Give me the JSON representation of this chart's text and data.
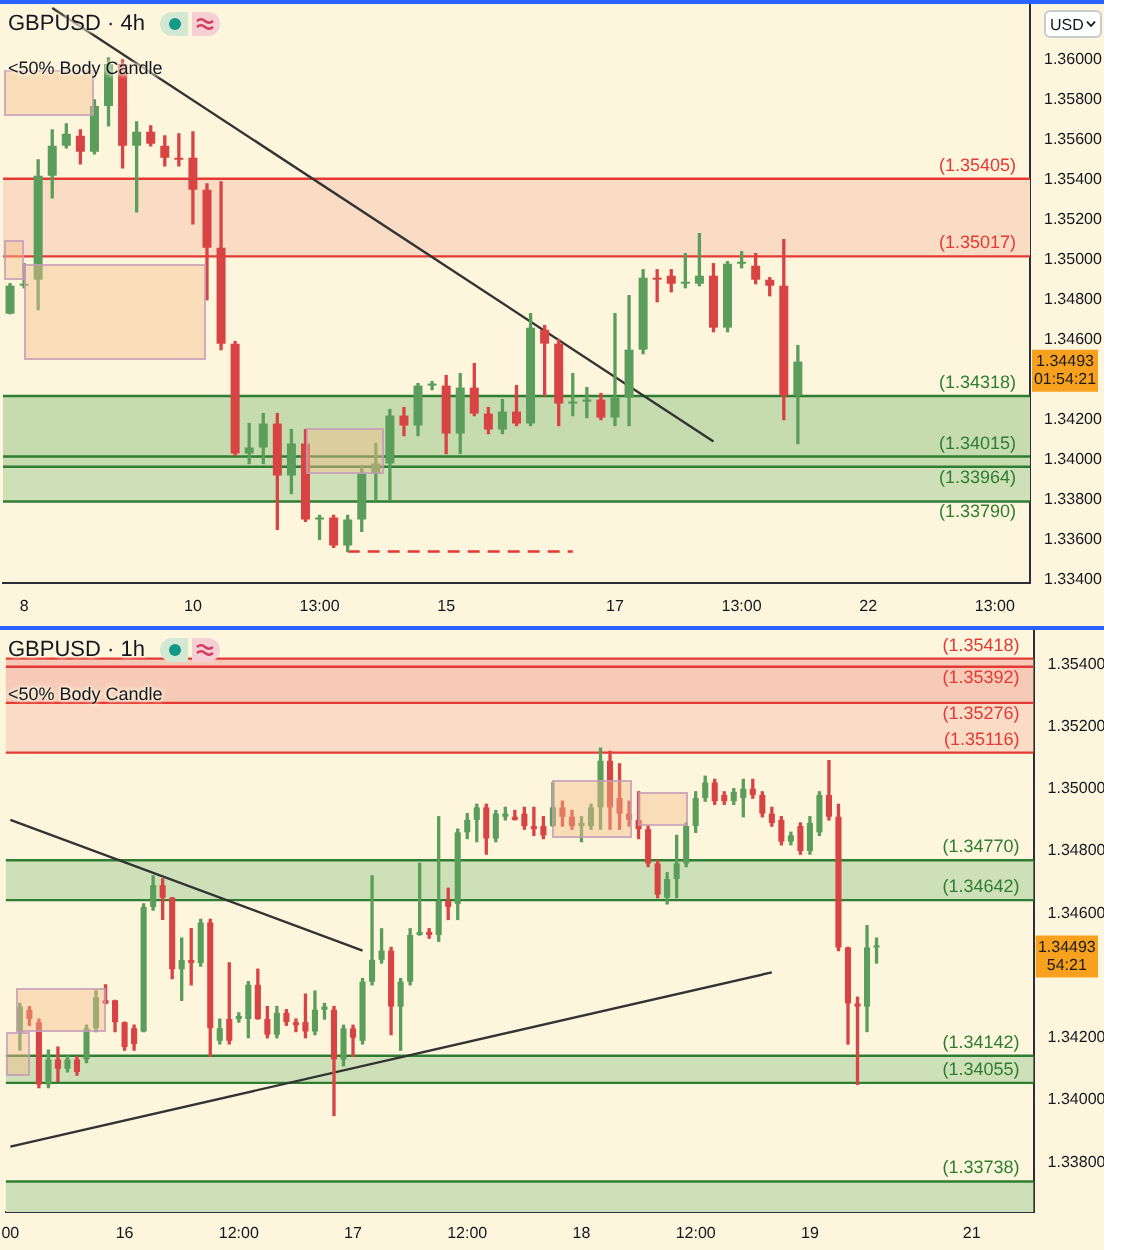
{
  "chart_data": [
    {
      "type": "candlestick",
      "title": "GBPUSD · 4h",
      "subtitle": "<50% Body Candle",
      "categories": [
        null,
        "8",
        null,
        null,
        null,
        null,
        null,
        null,
        null,
        null,
        null,
        null,
        null,
        "10",
        null,
        null,
        null,
        null,
        null,
        null,
        null,
        null,
        "13:00",
        null,
        null,
        null,
        null,
        null,
        null,
        null,
        null,
        "15",
        null,
        null,
        null,
        null,
        null,
        null,
        null,
        null,
        null,
        null,
        null,
        "17",
        null,
        null,
        null,
        null,
        null,
        null,
        null,
        null,
        "13:00",
        null,
        null,
        null,
        null,
        null,
        null,
        null,
        null,
        "22",
        null,
        null,
        null,
        null,
        null,
        null,
        null,
        null,
        "13:00",
        null,
        null
      ],
      "ohlc": [
        [
          1.3473,
          1.3488,
          1.3473,
          1.3487
        ],
        [
          1.3487,
          1.3498,
          1.3486,
          1.3488
        ],
        [
          1.349,
          1.355,
          1.3475,
          1.3542
        ],
        [
          1.3542,
          1.3565,
          1.3531,
          1.3557
        ],
        [
          1.3557,
          1.3568,
          1.3556,
          1.3563
        ],
        [
          1.3562,
          1.3565,
          1.3548,
          1.3554
        ],
        [
          1.3554,
          1.358,
          1.3553,
          1.3577
        ],
        [
          1.3577,
          1.3601,
          1.3567,
          1.3598
        ],
        [
          1.3598,
          1.36,
          1.3546,
          1.3557
        ],
        [
          1.3557,
          1.3569,
          1.3524,
          1.3564
        ],
        [
          1.3564,
          1.3567,
          1.3557,
          1.3558
        ],
        [
          1.3557,
          1.3562,
          1.3547,
          1.3551
        ],
        [
          1.3551,
          1.3563,
          1.3547,
          1.355
        ],
        [
          1.3551,
          1.3564,
          1.3518,
          1.3535
        ],
        [
          1.3535,
          1.3538,
          1.348,
          1.3506
        ],
        [
          1.3506,
          1.3539,
          1.3455,
          1.3458
        ],
        [
          1.3458,
          1.3459,
          1.3402,
          1.3403
        ],
        [
          1.3403,
          1.3418,
          1.3398,
          1.3406
        ],
        [
          1.3406,
          1.3423,
          1.3398,
          1.3418
        ],
        [
          1.3418,
          1.3423,
          1.3365,
          1.3392
        ],
        [
          1.3392,
          1.3415,
          1.3383,
          1.3408
        ],
        [
          1.3408,
          1.3415,
          1.3369,
          1.337
        ],
        [
          1.337,
          1.3372,
          1.336,
          1.3371
        ],
        [
          1.3371,
          1.3372,
          1.3356,
          1.3357
        ],
        [
          1.3357,
          1.3372,
          1.3354,
          1.337
        ],
        [
          1.337,
          1.3397,
          1.3364,
          1.3393
        ],
        [
          1.3393,
          1.3408,
          1.338,
          1.3398
        ],
        [
          1.3398,
          1.3425,
          1.338,
          1.3422
        ],
        [
          1.3422,
          1.3426,
          1.3412,
          1.3417
        ],
        [
          1.3417,
          1.3438,
          1.3412,
          1.3437
        ],
        [
          1.3437,
          1.3439,
          1.3435,
          1.3438
        ],
        [
          1.3437,
          1.3442,
          1.3403,
          1.3413
        ],
        [
          1.3413,
          1.3443,
          1.3403,
          1.3436
        ],
        [
          1.3436,
          1.3448,
          1.3422,
          1.3423
        ],
        [
          1.3423,
          1.3426,
          1.3413,
          1.3415
        ],
        [
          1.3415,
          1.343,
          1.3413,
          1.3424
        ],
        [
          1.3424,
          1.3437,
          1.3417,
          1.3418
        ],
        [
          1.3418,
          1.3473,
          1.3417,
          1.3466
        ],
        [
          1.3465,
          1.3467,
          1.3432,
          1.3458
        ],
        [
          1.3458,
          1.346,
          1.3417,
          1.3428
        ],
        [
          1.3428,
          1.3443,
          1.3422,
          1.3429
        ],
        [
          1.3429,
          1.3436,
          1.3421,
          1.343
        ],
        [
          1.343,
          1.3433,
          1.342,
          1.3421
        ],
        [
          1.3421,
          1.3473,
          1.3417,
          1.3431
        ],
        [
          1.3431,
          1.3482,
          1.3417,
          1.3455
        ],
        [
          1.3455,
          1.3495,
          1.3453,
          1.3491
        ],
        [
          1.3491,
          1.3495,
          1.3479,
          1.349
        ],
        [
          1.3492,
          1.3495,
          1.3484,
          1.3488
        ],
        [
          1.3488,
          1.3503,
          1.3486,
          1.3489
        ],
        [
          1.3488,
          1.3513,
          1.3487,
          1.3492
        ],
        [
          1.3492,
          1.3498,
          1.3464,
          1.3466
        ],
        [
          1.3466,
          1.3499,
          1.3464,
          1.3498
        ],
        [
          1.3498,
          1.3504,
          1.3496,
          1.3499
        ],
        [
          1.3497,
          1.3503,
          1.3488,
          1.349
        ],
        [
          1.349,
          1.3491,
          1.3482,
          1.3487
        ],
        [
          1.3487,
          1.351,
          1.342,
          1.3432
        ],
        [
          1.3432,
          1.3457,
          1.3408,
          1.3449
        ],
        null,
        null,
        null,
        null,
        null,
        null,
        null,
        null,
        null,
        null,
        null,
        null,
        null,
        null,
        null,
        null
      ],
      "colors": [
        "#5b9d5b",
        "#5b9d5b",
        "#5b9d5b",
        "#5b9d5b",
        "#5b9d5b",
        "#d84343",
        "#5b9d5b",
        "#5b9d5b",
        "#d84343",
        "#5b9d5b",
        "#d84343",
        "#d84343",
        "#d84343",
        "#d84343",
        "#d84343",
        "#d84343",
        "#d84343",
        "#5b9d5b",
        "#5b9d5b",
        "#d84343",
        "#5b9d5b",
        "#d84343",
        "#5b9d5b",
        "#d84343",
        "#5b9d5b",
        "#5b9d5b",
        "#5b9d5b",
        "#5b9d5b",
        "#d84343",
        "#5b9d5b",
        "#5b9d5b",
        "#d84343",
        "#5b9d5b",
        "#d84343",
        "#d84343",
        "#5b9d5b",
        "#d84343",
        "#5b9d5b",
        "#d84343",
        "#d84343",
        "#5b9d5b",
        "#5b9d5b",
        "#d84343",
        "#5b9d5b",
        "#5b9d5b",
        "#5b9d5b",
        "#d84343",
        "#d84343",
        "#5b9d5b",
        "#5b9d5b",
        "#d84343",
        "#5b9d5b",
        "#5b9d5b",
        "#d84343",
        "#d84343",
        "#d84343",
        "#5b9d5b",
        null,
        null,
        null,
        null,
        null,
        null,
        null,
        null,
        null,
        null,
        null,
        null,
        null,
        null,
        null,
        null
      ],
      "series": [
        {
          "type": "line",
          "color": "#333333",
          "values": [
            null,
            null,
            null,
            1.3626,
            null,
            null,
            null,
            null,
            null,
            null,
            null,
            null,
            null,
            null,
            null,
            null,
            null,
            null,
            null,
            null,
            null,
            null,
            null,
            null,
            null,
            null,
            null,
            null,
            null,
            null,
            null,
            null,
            null,
            null,
            null,
            null,
            null,
            null,
            null,
            null,
            null,
            null,
            null,
            null,
            null,
            null,
            null,
            null,
            null,
            null,
            1.3409,
            null,
            null,
            null,
            null,
            null,
            null,
            null,
            null,
            null,
            null,
            null,
            null,
            null,
            null,
            null,
            null,
            null,
            null,
            null,
            null,
            null,
            null
          ]
        },
        {
          "type": "line",
          "color": "#e53935",
          "line_style": "dashed",
          "values": [
            null,
            null,
            null,
            null,
            null,
            null,
            null,
            null,
            null,
            null,
            null,
            null,
            null,
            null,
            null,
            null,
            null,
            null,
            null,
            null,
            null,
            null,
            null,
            null,
            1.3354,
            null,
            null,
            null,
            null,
            null,
            null,
            null,
            null,
            null,
            null,
            null,
            null,
            null,
            null,
            null,
            1.3354,
            null,
            null,
            null,
            null,
            null,
            null,
            null,
            null,
            null,
            null,
            null,
            null,
            null,
            null,
            null,
            null,
            null,
            null,
            null,
            null,
            null,
            null,
            null,
            null,
            null,
            null,
            null,
            null,
            null,
            null,
            null,
            null
          ]
        }
      ],
      "ylim": [
        1.3338,
        1.3628
      ],
      "yticks": [
        {
          "value": 1.334,
          "label": "1.33400"
        },
        {
          "value": 1.336,
          "label": "1.33600"
        },
        {
          "value": 1.338,
          "label": "1.33800"
        },
        {
          "value": 1.34,
          "label": "1.34000"
        },
        {
          "value": 1.342,
          "label": "1.34200"
        },
        {
          "value": 1.346,
          "label": "1.34600"
        },
        {
          "value": 1.348,
          "label": "1.34800"
        },
        {
          "value": 1.35,
          "label": "1.35000"
        },
        {
          "value": 1.352,
          "label": "1.35200"
        },
        {
          "value": 1.354,
          "label": "1.35400"
        },
        {
          "value": 1.356,
          "label": "1.35600"
        },
        {
          "value": 1.358,
          "label": "1.35800"
        },
        {
          "value": 1.36,
          "label": "1.36000"
        }
      ],
      "bands": [
        {
          "axis": "y",
          "from": 1.35017,
          "to": 1.35405,
          "color": "#f9dcc3"
        },
        {
          "axis": "y",
          "from": 1.3379,
          "to": 1.34015,
          "color": "#cde0b7"
        },
        {
          "axis": "y",
          "from": 1.33964,
          "to": 1.34318,
          "color": "#c6dbae"
        }
      ],
      "ref_lines": [
        {
          "axis": "y",
          "value": 1.35405,
          "label": "(1.35405)",
          "color": "#e53935"
        },
        {
          "axis": "y",
          "value": 1.35017,
          "label": "(1.35017)",
          "color": "#e53935"
        },
        {
          "axis": "y",
          "value": 1.34318,
          "label": "(1.34318)",
          "color": "#2e7d32"
        },
        {
          "axis": "y",
          "value": 1.34015,
          "label": "(1.34015)",
          "color": "#2e7d32"
        },
        {
          "axis": "y",
          "value": 1.33964,
          "label": "(1.33964)",
          "color": "#2e7d32"
        },
        {
          "axis": "y",
          "value": 1.3379,
          "label": "(1.33790)",
          "color": "#2e7d32"
        }
      ],
      "annotations": [
        "USD",
        "1.34493",
        "01:54:21"
      ]
    },
    {
      "type": "candlestick",
      "title": "GBPUSD · 1h",
      "subtitle": "<50% Body Candle",
      "categories": [
        "00",
        null,
        null,
        null,
        null,
        null,
        null,
        null,
        null,
        null,
        null,
        null,
        "16",
        null,
        null,
        null,
        null,
        null,
        null,
        null,
        null,
        null,
        null,
        null,
        "12:00",
        null,
        null,
        null,
        null,
        null,
        null,
        null,
        null,
        null,
        null,
        null,
        "17",
        null,
        null,
        null,
        null,
        null,
        null,
        null,
        null,
        null,
        null,
        null,
        "12:00",
        null,
        null,
        null,
        null,
        null,
        null,
        null,
        null,
        null,
        null,
        null,
        "18",
        null,
        null,
        null,
        null,
        null,
        null,
        null,
        null,
        null,
        null,
        null,
        "12:00",
        null,
        null,
        null,
        null,
        null,
        null,
        null,
        null,
        null,
        null,
        null,
        "19",
        null,
        null,
        null,
        null,
        null,
        null,
        null,
        null,
        null,
        null,
        null,
        null,
        null,
        null,
        null,
        null,
        "21",
        null,
        null,
        null,
        null,
        null,
        null
      ],
      "ohlc": [
        null,
        [
          1.3422,
          1.3431,
          1.3416,
          1.343
        ],
        [
          1.3429,
          1.343,
          1.3424,
          1.3426
        ],
        [
          1.3425,
          1.3426,
          1.3404,
          1.3405
        ],
        [
          1.3405,
          1.3416,
          1.3404,
          1.3413
        ],
        [
          1.3413,
          1.3417,
          1.3406,
          1.341
        ],
        [
          1.341,
          1.3414,
          1.3409,
          1.3413
        ],
        [
          1.3413,
          1.3414,
          1.3408,
          1.3409
        ],
        [
          1.3413,
          1.3424,
          1.3412,
          1.3423
        ],
        [
          1.3423,
          1.3435,
          1.3422,
          1.3433
        ],
        [
          1.3432,
          1.3437,
          1.3431,
          1.3431
        ],
        [
          1.3432,
          1.3432,
          1.3422,
          1.3425
        ],
        [
          1.3425,
          1.3425,
          1.3416,
          1.3417
        ],
        [
          1.3423,
          1.3424,
          1.3416,
          1.3418
        ],
        [
          1.3422,
          1.3463,
          1.3422,
          1.3462
        ],
        [
          1.3462,
          1.3472,
          1.3461,
          1.3469
        ],
        [
          1.3469,
          1.3471,
          1.3458,
          1.3465
        ],
        [
          1.3465,
          1.3465,
          1.3439,
          1.3442
        ],
        [
          1.3442,
          1.3452,
          1.3432,
          1.3445
        ],
        [
          1.3445,
          1.3455,
          1.3437,
          1.3444
        ],
        [
          1.3444,
          1.3458,
          1.3443,
          1.3457
        ],
        [
          1.3457,
          1.3458,
          1.3414,
          1.3423
        ],
        [
          1.3419,
          1.3426,
          1.3418,
          1.3423
        ],
        [
          1.3426,
          1.3444,
          1.3418,
          1.3419
        ],
        [
          1.3426,
          1.3428,
          1.3425,
          1.3427
        ],
        [
          1.3426,
          1.3438,
          1.342,
          1.3437
        ],
        [
          1.3437,
          1.3442,
          1.3426,
          1.3426
        ],
        [
          1.3426,
          1.343,
          1.342,
          1.3421
        ],
        [
          1.3421,
          1.343,
          1.342,
          1.3428
        ],
        [
          1.3428,
          1.3429,
          1.3424,
          1.3425
        ],
        [
          1.3425,
          1.3426,
          1.3422,
          1.3424
        ],
        [
          1.3425,
          1.3434,
          1.342,
          1.3422
        ],
        [
          1.3422,
          1.3435,
          1.3421,
          1.3429
        ],
        [
          1.3429,
          1.3431,
          1.3426,
          1.343
        ],
        [
          1.3429,
          1.343,
          1.3395,
          1.3413
        ],
        [
          1.3413,
          1.3424,
          1.3411,
          1.3423
        ],
        [
          1.3423,
          1.3424,
          1.3414,
          1.342
        ],
        [
          1.3419,
          1.3439,
          1.3418,
          1.3438
        ],
        [
          1.3438,
          1.3472,
          1.3437,
          1.3445
        ],
        [
          1.3445,
          1.3455,
          1.3444,
          1.3448
        ],
        [
          1.3448,
          1.3449,
          1.3421,
          1.343
        ],
        [
          1.343,
          1.3439,
          1.3416,
          1.3438
        ],
        [
          1.3438,
          1.3455,
          1.3437,
          1.3453
        ],
        [
          1.3453,
          1.3476,
          1.3453,
          1.3454
        ],
        [
          1.3454,
          1.3455,
          1.3452,
          1.3453
        ],
        [
          1.3453,
          1.3491,
          1.3451,
          1.3464
        ],
        [
          1.3464,
          1.3468,
          1.3458,
          1.3462
        ],
        [
          1.3463,
          1.3487,
          1.3458,
          1.3486
        ],
        [
          1.3486,
          1.3492,
          1.3484,
          1.349
        ],
        [
          1.349,
          1.3495,
          1.3483,
          1.3494
        ],
        [
          1.3494,
          1.3495,
          1.3479,
          1.3484
        ],
        [
          1.3484,
          1.3493,
          1.3483,
          1.3492
        ],
        [
          1.3491,
          1.3494,
          1.349,
          1.3492
        ],
        [
          1.3491,
          1.3493,
          1.349,
          1.349
        ],
        [
          1.3492,
          1.3494,
          1.3487,
          1.3488
        ],
        [
          1.3488,
          1.3494,
          1.3485,
          1.3487
        ],
        [
          1.3488,
          1.3491,
          1.3484,
          1.3485
        ],
        [
          1.3488,
          1.3502,
          1.3488,
          1.3494
        ],
        [
          1.3494,
          1.3496,
          1.3488,
          1.3491
        ],
        [
          1.3491,
          1.3493,
          1.3487,
          1.3488
        ],
        [
          1.3488,
          1.3491,
          1.3483,
          1.3489
        ],
        [
          1.3488,
          1.3495,
          1.3487,
          1.3494
        ],
        [
          1.3494,
          1.3513,
          1.3487,
          1.3509
        ],
        [
          1.3509,
          1.3512,
          1.3487,
          1.3494
        ],
        [
          1.3497,
          1.3508,
          1.3487,
          1.3492
        ],
        [
          1.3492,
          1.3496,
          1.3488,
          1.349
        ],
        [
          1.349,
          1.3499,
          1.3484,
          1.3487
        ],
        [
          1.3487,
          1.3488,
          1.3475,
          1.3476
        ],
        [
          1.3476,
          1.3477,
          1.3465,
          1.3466
        ],
        [
          1.3465,
          1.3473,
          1.3463,
          1.3471
        ],
        [
          1.3471,
          1.3485,
          1.3465,
          1.3476
        ],
        [
          1.3476,
          1.3489,
          1.3475,
          1.3488
        ],
        [
          1.3488,
          1.3499,
          1.3486,
          1.3497
        ],
        [
          1.3497,
          1.3504,
          1.3496,
          1.3502
        ],
        [
          1.3502,
          1.3503,
          1.3495,
          1.3496
        ],
        [
          1.3498,
          1.3499,
          1.3495,
          1.3496
        ],
        [
          1.3496,
          1.35,
          1.3495,
          1.3499
        ],
        [
          1.3497,
          1.3503,
          1.3491,
          1.35
        ],
        [
          1.35,
          1.3503,
          1.3497,
          1.3498
        ],
        [
          1.3498,
          1.3499,
          1.3491,
          1.3492
        ],
        [
          1.3492,
          1.3494,
          1.3488,
          1.3489
        ],
        [
          1.349,
          1.3491,
          1.3482,
          1.3483
        ],
        [
          1.3483,
          1.3486,
          1.3482,
          1.3485
        ],
        [
          1.3488,
          1.3489,
          1.3479,
          1.348
        ],
        [
          1.348,
          1.3491,
          1.3479,
          1.3489
        ],
        [
          1.3486,
          1.3499,
          1.3485,
          1.3498
        ],
        [
          1.3498,
          1.3509,
          1.349,
          1.3491
        ],
        [
          1.3491,
          1.3495,
          1.3448,
          1.3449
        ],
        [
          1.3449,
          1.3449,
          1.3418,
          1.3431
        ],
        [
          1.3431,
          1.3433,
          1.3405,
          1.343
        ],
        [
          1.343,
          1.3456,
          1.3422,
          1.3449
        ],
        [
          1.3449,
          1.3452,
          1.3444,
          1.3449
        ],
        null,
        null,
        null,
        null,
        null,
        null,
        null,
        null,
        null,
        null,
        null,
        null,
        null,
        null,
        null,
        null
      ],
      "colors": [
        null,
        "#5b9d5b",
        "#d84343",
        "#d84343",
        "#5b9d5b",
        "#d84343",
        "#5b9d5b",
        "#d84343",
        "#5b9d5b",
        "#5b9d5b",
        "#d84343",
        "#d84343",
        "#d84343",
        "#d84343",
        "#5b9d5b",
        "#5b9d5b",
        "#d84343",
        "#d84343",
        "#5b9d5b",
        "#d84343",
        "#5b9d5b",
        "#d84343",
        "#5b9d5b",
        "#d84343",
        "#5b9d5b",
        "#5b9d5b",
        "#d84343",
        "#d84343",
        "#5b9d5b",
        "#d84343",
        "#d84343",
        "#d84343",
        "#5b9d5b",
        "#5b9d5b",
        "#d84343",
        "#5b9d5b",
        "#d84343",
        "#5b9d5b",
        "#5b9d5b",
        "#5b9d5b",
        "#d84343",
        "#5b9d5b",
        "#5b9d5b",
        "#5b9d5b",
        "#d84343",
        "#5b9d5b",
        "#d84343",
        "#5b9d5b",
        "#5b9d5b",
        "#5b9d5b",
        "#d84343",
        "#5b9d5b",
        "#5b9d5b",
        "#d84343",
        "#d84343",
        "#d84343",
        "#d84343",
        "#5b9d5b",
        "#d84343",
        "#d84343",
        "#5b9d5b",
        "#5b9d5b",
        "#5b9d5b",
        "#d84343",
        "#d84343",
        "#d84343",
        "#d84343",
        "#d84343",
        "#d84343",
        "#5b9d5b",
        "#5b9d5b",
        "#5b9d5b",
        "#5b9d5b",
        "#5b9d5b",
        "#d84343",
        "#d84343",
        "#5b9d5b",
        "#5b9d5b",
        "#d84343",
        "#d84343",
        "#d84343",
        "#d84343",
        "#5b9d5b",
        "#d84343",
        "#5b9d5b",
        "#5b9d5b",
        "#d84343",
        "#d84343",
        "#d84343",
        "#d84343",
        "#5b9d5b",
        "#5b9d5b",
        null,
        null,
        null,
        null,
        null,
        null,
        null,
        null,
        null,
        null,
        null,
        null,
        null,
        null,
        null,
        null
      ],
      "series": [
        {
          "type": "line",
          "color": "#333333",
          "values": [
            1.349,
            null,
            null,
            null,
            null,
            null,
            null,
            null,
            null,
            null,
            null,
            null,
            null,
            null,
            null,
            null,
            null,
            null,
            null,
            null,
            null,
            null,
            null,
            null,
            null,
            null,
            null,
            null,
            null,
            null,
            null,
            null,
            null,
            null,
            null,
            null,
            null,
            1.3448,
            null,
            null,
            null,
            null,
            null,
            null,
            null,
            null,
            null,
            null,
            null,
            null,
            null,
            null,
            null,
            null,
            null,
            null,
            null,
            null,
            null,
            null,
            null,
            null,
            null,
            null,
            null,
            null,
            null,
            null,
            null,
            null,
            null,
            null,
            null,
            null,
            null,
            null,
            null,
            null,
            null,
            null,
            null,
            null,
            null,
            null,
            null,
            null,
            null,
            null,
            null,
            null,
            null,
            null,
            null,
            null,
            null,
            null,
            null,
            null,
            null,
            null,
            null,
            null,
            null,
            null,
            null,
            null,
            null,
            null
          ]
        },
        {
          "type": "line",
          "color": "#333333",
          "values": [
            1.3385,
            null,
            null,
            null,
            null,
            null,
            null,
            null,
            null,
            null,
            null,
            null,
            null,
            null,
            null,
            null,
            null,
            null,
            null,
            null,
            null,
            null,
            null,
            null,
            null,
            null,
            null,
            null,
            null,
            null,
            null,
            null,
            null,
            null,
            null,
            null,
            null,
            null,
            null,
            null,
            null,
            null,
            null,
            null,
            null,
            null,
            null,
            null,
            null,
            null,
            null,
            null,
            null,
            null,
            null,
            null,
            null,
            null,
            null,
            null,
            null,
            null,
            null,
            null,
            null,
            null,
            null,
            null,
            null,
            null,
            null,
            null,
            null,
            null,
            null,
            null,
            null,
            null,
            null,
            null,
            1.3441,
            null,
            null,
            null,
            null,
            null,
            null,
            null,
            null,
            null,
            null,
            null,
            null,
            null,
            null,
            null,
            null,
            null,
            null,
            null,
            null,
            null,
            null,
            null,
            null,
            null,
            null,
            null
          ]
        }
      ],
      "ylim": [
        1.3364,
        1.3551
      ],
      "yticks": [
        {
          "value": 1.338,
          "label": "1.33800"
        },
        {
          "value": 1.34,
          "label": "1.34000"
        },
        {
          "value": 1.342,
          "label": "1.34200"
        },
        {
          "value": 1.346,
          "label": "1.34600"
        },
        {
          "value": 1.348,
          "label": "1.34800"
        },
        {
          "value": 1.35,
          "label": "1.35000"
        },
        {
          "value": 1.352,
          "label": "1.35200"
        },
        {
          "value": 1.354,
          "label": "1.35400"
        }
      ],
      "bands": [
        {
          "axis": "y",
          "from": 1.35276,
          "to": 1.35418,
          "color": "#f6cab6"
        },
        {
          "axis": "y",
          "from": 1.35116,
          "to": 1.35276,
          "color": "#fadcc6"
        },
        {
          "axis": "y",
          "from": 1.34642,
          "to": 1.3477,
          "color": "#cde0b7"
        },
        {
          "axis": "y",
          "from": 1.34055,
          "to": 1.34142,
          "color": "#cde0b7"
        },
        {
          "axis": "y",
          "from": 1.3364,
          "to": 1.33738,
          "color": "#cde0b7"
        }
      ],
      "ref_lines": [
        {
          "axis": "y",
          "value": 1.35418,
          "label": "(1.35418)",
          "color": "#e53935"
        },
        {
          "axis": "y",
          "value": 1.35392,
          "label": "(1.35392)",
          "color": "#e53935"
        },
        {
          "axis": "y",
          "value": 1.35276,
          "label": "(1.35276)",
          "color": "#e53935"
        },
        {
          "axis": "y",
          "value": 1.35116,
          "label": "(1.35116)",
          "color": "#e53935"
        },
        {
          "axis": "y",
          "value": 1.3477,
          "label": "(1.34770)",
          "color": "#2e7d32"
        },
        {
          "axis": "y",
          "value": 1.34642,
          "label": "(1.34642)",
          "color": "#2e7d32"
        },
        {
          "axis": "y",
          "value": 1.34142,
          "label": "(1.34142)",
          "color": "#2e7d32"
        },
        {
          "axis": "y",
          "value": 1.34055,
          "label": "(1.34055)",
          "color": "#2e7d32"
        },
        {
          "axis": "y",
          "value": 1.33738,
          "label": "(1.33738)",
          "color": "#2e7d32"
        }
      ],
      "annotations": [
        "1.34493",
        "54:21"
      ]
    }
  ]
}
